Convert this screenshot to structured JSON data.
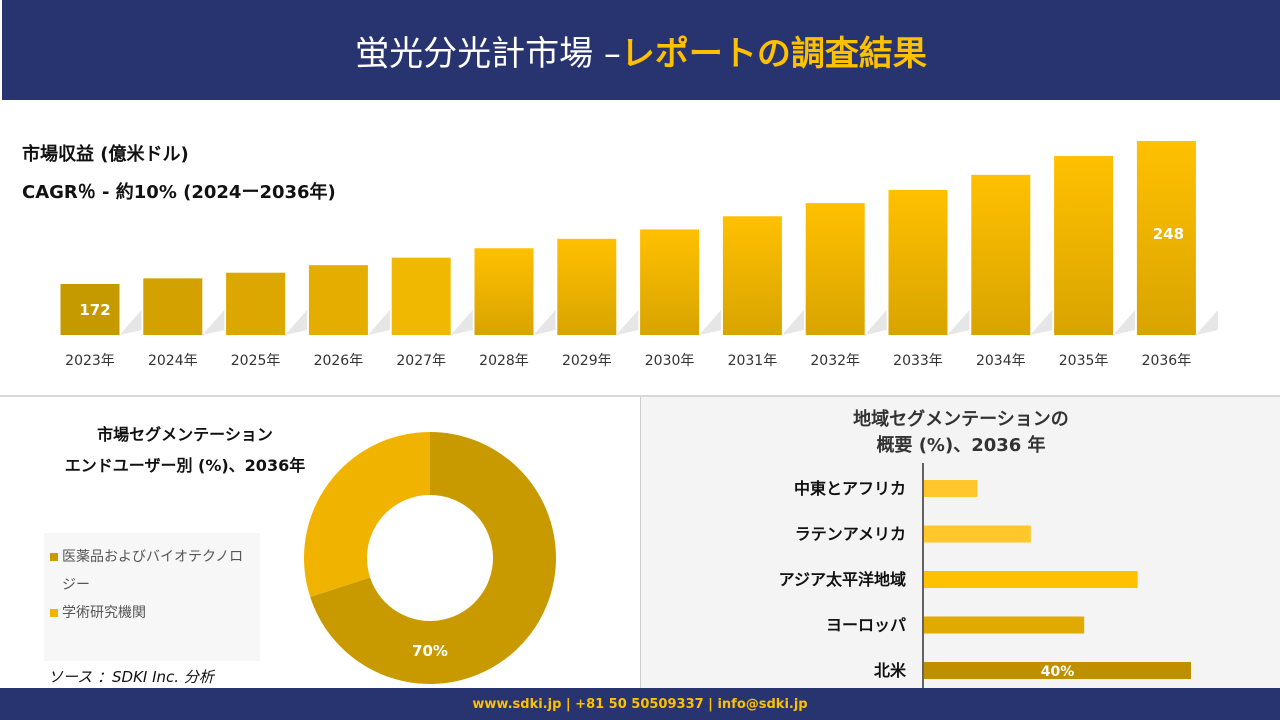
{
  "header": {
    "title_white": "蛍光分光計市場 –",
    "title_yellow": "レポートの調査結果"
  },
  "revenue": {
    "label": "市場収益 (億米ドル)",
    "cagr": "CAGR％ - 約10% (2024ー2036年)"
  },
  "chart_data": [
    {
      "type": "bar",
      "categories": [
        "2023年",
        "2024年",
        "2025年",
        "2026年",
        "2027年",
        "2028年",
        "2029年",
        "2030年",
        "2031年",
        "2032年",
        "2033年",
        "2034年",
        "2035年",
        "2036年"
      ],
      "values": [
        172,
        175,
        178,
        182,
        186,
        191,
        196,
        201,
        208,
        215,
        222,
        230,
        240,
        248
      ],
      "data_labels": {
        "0": "172",
        "13": "248"
      },
      "colors": [
        "#c49a00",
        "#d4a200",
        "#dca800",
        "#e4ad00",
        "#f0b800",
        "#ffc000",
        "#ffc000",
        "#ffc000",
        "#ffc000",
        "#ffc000",
        "#ffc000",
        "#ffc000",
        "#ffc000",
        "#ffc000"
      ],
      "grid": false
    },
    {
      "type": "pie",
      "title": "市場セグメンテーション エンドユーザー別 (%)、2036年",
      "labels": [
        "医薬品およびバイオテクノロジー",
        "学術研究機関"
      ],
      "values": [
        70,
        30
      ],
      "data_labels": [
        "70%",
        ""
      ],
      "colors": [
        "#c89a00",
        "#f0b400"
      ],
      "legend": "left"
    },
    {
      "type": "bar",
      "orientation": "horizontal",
      "title": "地域セグメンテーションの 概要 (%)、2036 年",
      "categories": [
        "中東とアフリカ",
        "ラテンアメリカ",
        "アジア太平洋地域",
        "ヨーロッパ",
        "北米"
      ],
      "values": [
        8,
        16,
        32,
        24,
        40
      ],
      "data_labels": [
        "",
        "",
        "",
        "",
        "40%"
      ],
      "colors": [
        "#ffc72c",
        "#ffc72c",
        "#ffc000",
        "#e0aa00",
        "#bf8f00"
      ]
    }
  ],
  "seg": {
    "title1": "市場セグメンテーション",
    "title2": "エンドユーザー別 (%)、2036年",
    "legend": [
      "医薬品およびバイオテクノロジー",
      "学術研究機関"
    ]
  },
  "region": {
    "title1": "地域セグメンテーションの",
    "title2": "概要 (%)、2036 年"
  },
  "source": "ソース ：SDKI Inc. 分析",
  "footer": "www.sdki.jp | +81 50 50509337 | info@sdki.jp"
}
